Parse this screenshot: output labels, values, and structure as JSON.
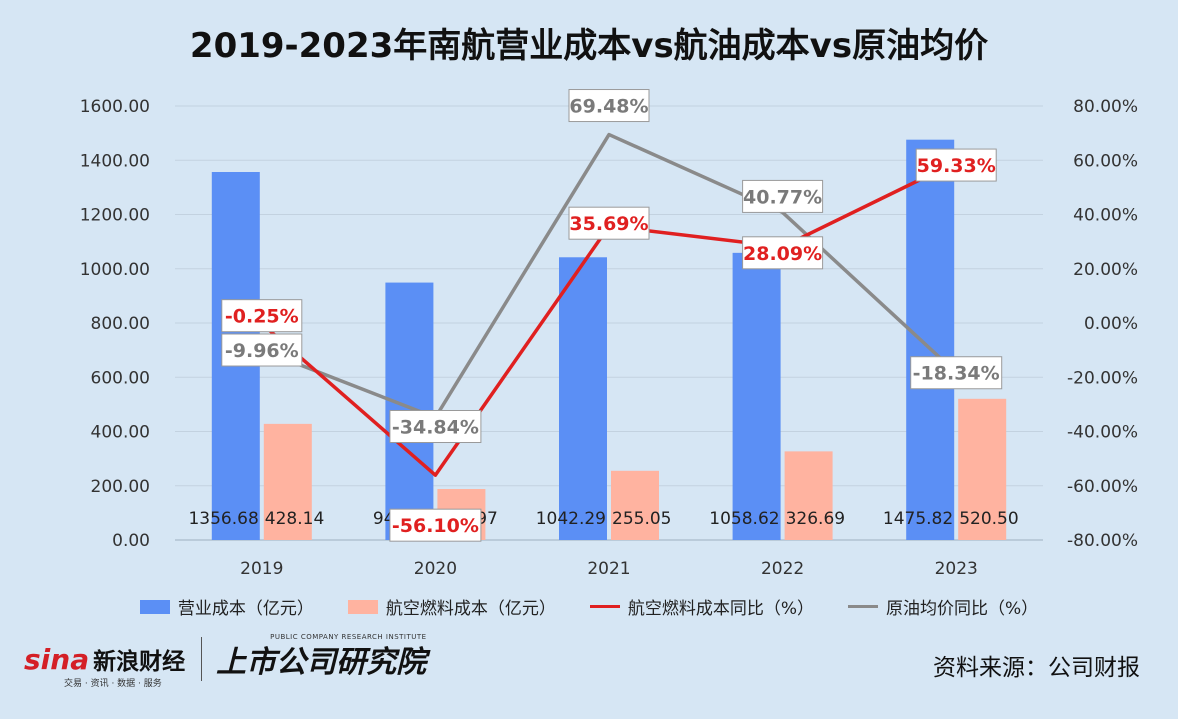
{
  "title": "2019-2023年南航营业成本vs航油成本vs原油均价",
  "source": "资料来源：公司财报",
  "logo": {
    "sina": "sina",
    "sina_cn": "新浪财经",
    "sina_sub": "交易 · 资讯 · 数据 · 服务",
    "inst_en": "PUBLIC COMPANY RESEARCH INSTITUTE",
    "inst_cn": "上市公司研究院"
  },
  "legend": [
    {
      "label": "营业成本（亿元）",
      "color": "#5b8ff5",
      "kind": "box"
    },
    {
      "label": "航空燃料成本（亿元）",
      "color": "#ffb3a0",
      "kind": "box"
    },
    {
      "label": "航空燃料成本同比（%）",
      "color": "#e02020",
      "kind": "line"
    },
    {
      "label": "原油均价同比（%）",
      "color": "#8a8a8a",
      "kind": "line"
    }
  ],
  "chart_data": {
    "type": "bar",
    "categories": [
      "2019",
      "2020",
      "2021",
      "2022",
      "2023"
    ],
    "series": [
      {
        "name": "营业成本（亿元）",
        "type": "bar",
        "axis": "left",
        "color": "#5b8ff5",
        "values": [
          1356.68,
          949.03,
          1042.29,
          1058.62,
          1475.82
        ],
        "labels": [
          "1356.68",
          "949.03",
          "1042.29",
          "1058.62",
          "1475.82"
        ]
      },
      {
        "name": "航空燃料成本（亿元）",
        "type": "bar",
        "axis": "left",
        "color": "#ffb3a0",
        "values": [
          428.14,
          187.97,
          255.05,
          326.69,
          520.5
        ],
        "labels": [
          "428.14",
          "187.97",
          "255.05",
          "326.69",
          "520.50"
        ]
      },
      {
        "name": "航空燃料成本同比（%）",
        "type": "line",
        "axis": "right",
        "color": "#e02020",
        "values": [
          -0.25,
          -56.1,
          35.69,
          28.09,
          59.33
        ],
        "labels": [
          "-0.25%",
          "-56.10%",
          "35.69%",
          "28.09%",
          "59.33%"
        ]
      },
      {
        "name": "原油均价同比（%）",
        "type": "line",
        "axis": "right",
        "color": "#8a8a8a",
        "values": [
          -9.96,
          -34.84,
          69.48,
          40.77,
          -18.34
        ],
        "labels": [
          "-9.96%",
          "-34.84%",
          "69.48%",
          "40.77%",
          "-18.34%"
        ]
      }
    ],
    "ylim_left": [
      0,
      1600
    ],
    "yticks_left": [
      "0.00",
      "200.00",
      "400.00",
      "600.00",
      "800.00",
      "1000.00",
      "1200.00",
      "1400.00",
      "1600.00"
    ],
    "ylim_right": [
      -80,
      80
    ],
    "yticks_right": [
      "-80.00%",
      "-60.00%",
      "-40.00%",
      "-20.00%",
      "0.00%",
      "20.00%",
      "40.00%",
      "60.00%",
      "80.00%"
    ],
    "grid": true,
    "legend_position": "bottom"
  }
}
